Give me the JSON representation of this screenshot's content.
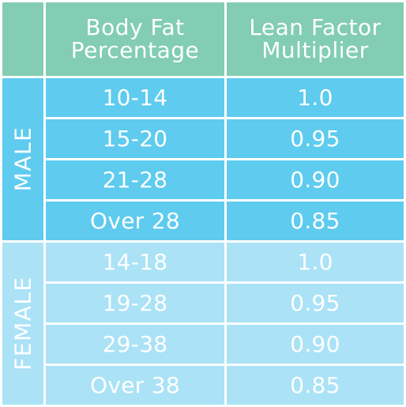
{
  "header": {
    "body_fat_line1": "Body Fat",
    "body_fat_line2": "Percentage",
    "lean_factor_line1": "Lean Factor",
    "lean_factor_line2": "Multiplier"
  },
  "groups": {
    "male": {
      "label": "MALE",
      "color": "#5ecbef",
      "rows": [
        {
          "range": "10-14",
          "multiplier": "1.0"
        },
        {
          "range": "15-20",
          "multiplier": "0.95"
        },
        {
          "range": "21-28",
          "multiplier": "0.90"
        },
        {
          "range": "Over 28",
          "multiplier": "0.85"
        }
      ]
    },
    "female": {
      "label": "FEMALE",
      "color": "#abe2f6",
      "rows": [
        {
          "range": "14-18",
          "multiplier": "1.0"
        },
        {
          "range": "19-28",
          "multiplier": "0.95"
        },
        {
          "range": "29-38",
          "multiplier": "0.90"
        },
        {
          "range": "Over 38",
          "multiplier": "0.85"
        }
      ]
    }
  },
  "colors": {
    "header": "#82cdb4",
    "text": "#ffffff",
    "grid": "#ffffff"
  }
}
